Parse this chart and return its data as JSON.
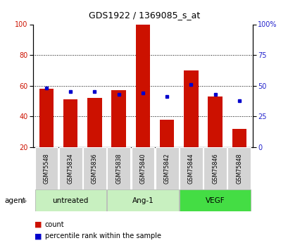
{
  "title": "GDS1922 / 1369085_s_at",
  "categories": [
    "GSM75548",
    "GSM75834",
    "GSM75836",
    "GSM75838",
    "GSM75840",
    "GSM75842",
    "GSM75844",
    "GSM75846",
    "GSM75848"
  ],
  "red_values": [
    58,
    51,
    52,
    57,
    100,
    38,
    70,
    53,
    32
  ],
  "blue_values": [
    48,
    45,
    45,
    43,
    44,
    41,
    51,
    43,
    38
  ],
  "ylim_left": [
    20,
    100
  ],
  "ylim_right": [
    0,
    100
  ],
  "yticks_left": [
    20,
    40,
    60,
    80,
    100
  ],
  "yticks_right": [
    0,
    25,
    50,
    75,
    100
  ],
  "yticklabels_right": [
    "0",
    "25",
    "50",
    "75",
    "100%"
  ],
  "bar_width": 0.6,
  "red_color": "#cc1100",
  "blue_color": "#0000cc",
  "group_labels": [
    "untreated",
    "Ang-1",
    "VEGF"
  ],
  "group_starts": [
    0,
    3,
    6
  ],
  "group_ends": [
    2,
    5,
    8
  ],
  "group_colors": [
    "#c8f0c0",
    "#c8f0c0",
    "#44dd44"
  ],
  "agent_label": "agent",
  "legend_count": "count",
  "legend_pct": "percentile rank within the sample",
  "xtick_bg_color": "#d4d4d4"
}
